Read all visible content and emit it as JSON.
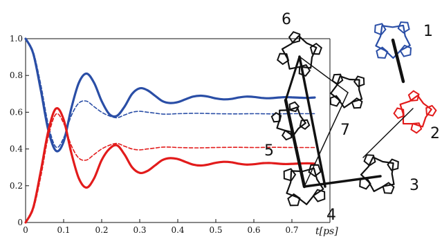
{
  "chart_data": {
    "type": "line",
    "xlabel": "t[ps]",
    "ylabel": "",
    "xlim": [
      0,
      0.8
    ],
    "ylim": [
      0,
      1.0
    ],
    "x_ticks": [
      "0",
      "0.1",
      "0.2",
      "0.3",
      "0.4",
      "0.5",
      "0.6",
      "0.7"
    ],
    "y_ticks": [
      "0",
      "0.2",
      "0.4",
      "0.6",
      "0.8",
      "1.0"
    ],
    "grid": false,
    "series": [
      {
        "color": "#2a4ea6",
        "style": "solid",
        "x": [
          0,
          0.02,
          0.04,
          0.06,
          0.08,
          0.1,
          0.12,
          0.14,
          0.16,
          0.18,
          0.2,
          0.22,
          0.24,
          0.26,
          0.28,
          0.3,
          0.32,
          0.34,
          0.36,
          0.38,
          0.4,
          0.42,
          0.44,
          0.46,
          0.48,
          0.5,
          0.52,
          0.54,
          0.56,
          0.58,
          0.6,
          0.62,
          0.64,
          0.66,
          0.68,
          0.7,
          0.72,
          0.74,
          0.76
        ],
        "y": [
          1.0,
          0.92,
          0.72,
          0.5,
          0.39,
          0.44,
          0.62,
          0.76,
          0.81,
          0.76,
          0.66,
          0.59,
          0.58,
          0.63,
          0.7,
          0.73,
          0.72,
          0.69,
          0.66,
          0.65,
          0.655,
          0.67,
          0.685,
          0.69,
          0.685,
          0.675,
          0.67,
          0.672,
          0.68,
          0.685,
          0.683,
          0.678,
          0.676,
          0.679,
          0.682,
          0.681,
          0.679,
          0.678,
          0.68
        ]
      },
      {
        "color": "#2a4ea6",
        "style": "dashed",
        "x": [
          0,
          0.02,
          0.04,
          0.06,
          0.08,
          0.1,
          0.12,
          0.14,
          0.16,
          0.18,
          0.2,
          0.22,
          0.24,
          0.26,
          0.28,
          0.3,
          0.32,
          0.34,
          0.36,
          0.38,
          0.4,
          0.45,
          0.5,
          0.55,
          0.6,
          0.65,
          0.7,
          0.76
        ],
        "y": [
          1.0,
          0.93,
          0.75,
          0.53,
          0.41,
          0.46,
          0.58,
          0.65,
          0.66,
          0.63,
          0.6,
          0.58,
          0.57,
          0.585,
          0.6,
          0.605,
          0.6,
          0.595,
          0.59,
          0.59,
          0.592,
          0.594,
          0.592,
          0.591,
          0.592,
          0.591,
          0.592,
          0.592
        ]
      },
      {
        "color": "#e21b1b",
        "style": "solid",
        "x": [
          0,
          0.02,
          0.04,
          0.06,
          0.08,
          0.1,
          0.12,
          0.14,
          0.16,
          0.18,
          0.2,
          0.22,
          0.24,
          0.26,
          0.28,
          0.3,
          0.32,
          0.34,
          0.36,
          0.38,
          0.4,
          0.42,
          0.44,
          0.46,
          0.48,
          0.5,
          0.52,
          0.54,
          0.56,
          0.58,
          0.6,
          0.62,
          0.64,
          0.66,
          0.68,
          0.7,
          0.72,
          0.74,
          0.76
        ],
        "y": [
          0.0,
          0.08,
          0.28,
          0.5,
          0.62,
          0.56,
          0.38,
          0.24,
          0.19,
          0.24,
          0.34,
          0.4,
          0.42,
          0.37,
          0.3,
          0.27,
          0.28,
          0.31,
          0.34,
          0.35,
          0.345,
          0.33,
          0.315,
          0.31,
          0.315,
          0.325,
          0.33,
          0.328,
          0.32,
          0.315,
          0.317,
          0.322,
          0.324,
          0.321,
          0.318,
          0.319,
          0.321,
          0.322,
          0.32
        ]
      },
      {
        "color": "#e21b1b",
        "style": "dashed",
        "x": [
          0,
          0.02,
          0.04,
          0.06,
          0.08,
          0.1,
          0.12,
          0.14,
          0.16,
          0.18,
          0.2,
          0.22,
          0.24,
          0.26,
          0.28,
          0.3,
          0.32,
          0.34,
          0.36,
          0.38,
          0.4,
          0.45,
          0.5,
          0.55,
          0.6,
          0.65,
          0.7,
          0.76
        ],
        "y": [
          0.0,
          0.07,
          0.25,
          0.47,
          0.59,
          0.54,
          0.42,
          0.35,
          0.34,
          0.37,
          0.4,
          0.42,
          0.43,
          0.415,
          0.4,
          0.395,
          0.4,
          0.405,
          0.41,
          0.41,
          0.408,
          0.406,
          0.408,
          0.409,
          0.408,
          0.409,
          0.408,
          0.408
        ]
      }
    ]
  },
  "diagram": {
    "node_labels": [
      "1",
      "2",
      "3",
      "4",
      "5",
      "6",
      "7"
    ]
  }
}
